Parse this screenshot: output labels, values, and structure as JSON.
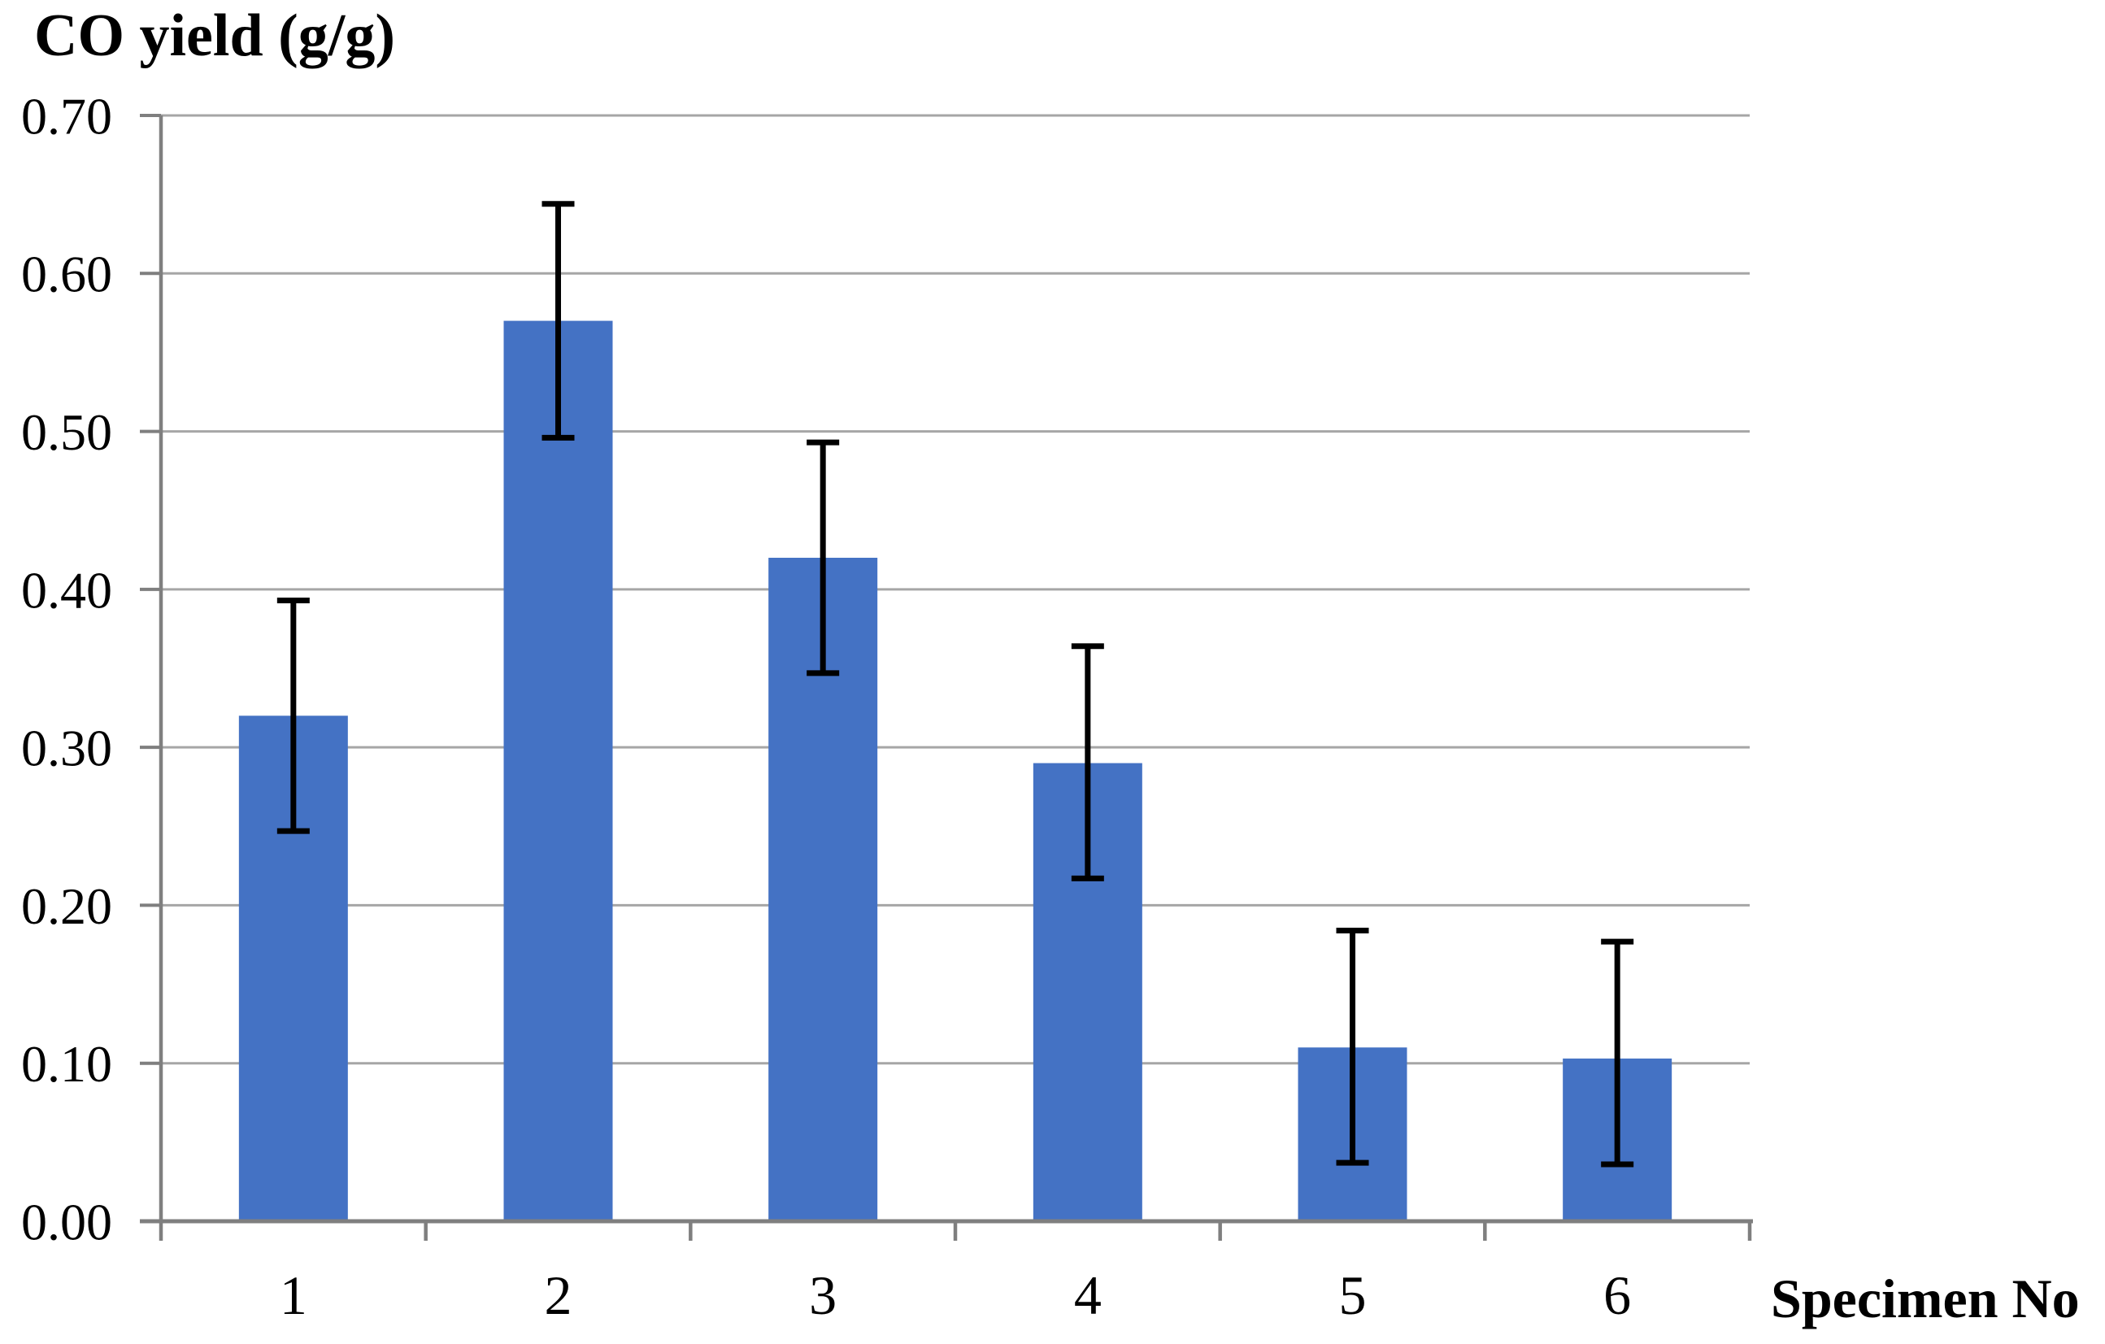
{
  "chart": {
    "title": "CO yield (g/g)",
    "xlabel": "Specimen No"
  },
  "chart_data": {
    "type": "bar",
    "title": "CO yield (g/g)",
    "xlabel": "Specimen No",
    "ylabel": "CO yield (g/g)",
    "categories": [
      "1",
      "2",
      "3",
      "4",
      "5",
      "6"
    ],
    "values": [
      0.32,
      0.57,
      0.42,
      0.29,
      0.11,
      0.103
    ],
    "error_low": [
      0.247,
      0.496,
      0.347,
      0.217,
      0.037,
      0.036
    ],
    "error_high": [
      0.393,
      0.644,
      0.493,
      0.364,
      0.184,
      0.177
    ],
    "ylim": [
      0,
      0.7
    ],
    "ytick_step": 0.1,
    "ytick_labels": [
      "0.00",
      "0.10",
      "0.20",
      "0.30",
      "0.40",
      "0.50",
      "0.60",
      "0.70"
    ],
    "grid": true,
    "legend": false,
    "bar_color": "#4472C4",
    "gridline_color": "#A6A6A6",
    "axis_color": "#7F7F7F",
    "error_bar_color": "#000000",
    "text_color": "#000000"
  }
}
